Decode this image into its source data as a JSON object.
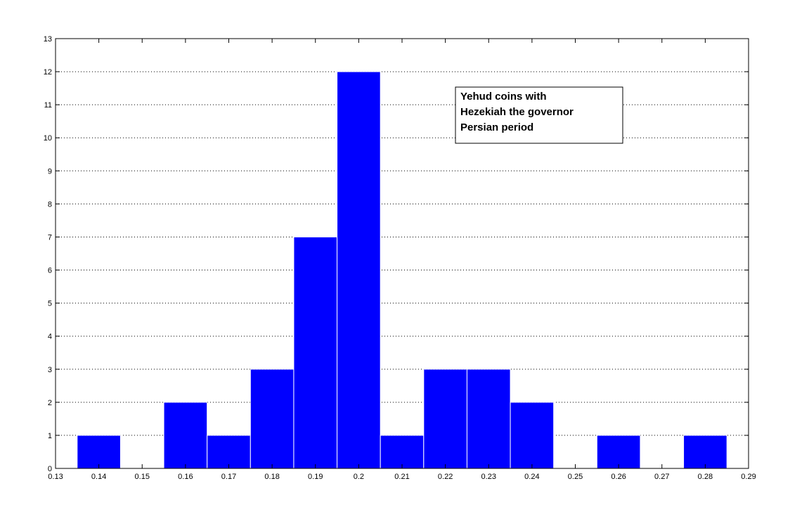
{
  "chart_data": {
    "type": "histogram",
    "bins": [
      0.135,
      0.145,
      0.155,
      0.165,
      0.175,
      0.185,
      0.195,
      0.205,
      0.215,
      0.225,
      0.235,
      0.245,
      0.255,
      0.265,
      0.275,
      0.285
    ],
    "values": [
      1,
      0,
      2,
      1,
      3,
      7,
      12,
      1,
      3,
      3,
      2,
      0,
      1,
      0,
      1
    ],
    "color": "#0000ff",
    "xlim": [
      0.13,
      0.29
    ],
    "xticks": [
      0.13,
      0.14,
      0.15,
      0.16,
      0.17,
      0.18,
      0.19,
      0.2,
      0.21,
      0.22,
      0.23,
      0.24,
      0.25,
      0.26,
      0.27,
      0.28,
      0.29
    ],
    "ylim": [
      0,
      13
    ],
    "yticks": [
      0,
      1,
      2,
      3,
      4,
      5,
      6,
      7,
      8,
      9,
      10,
      11,
      12,
      13
    ],
    "grid": true,
    "annotation": [
      "Yehud coins with",
      "Hezekiah the governor",
      "Persian period"
    ]
  }
}
